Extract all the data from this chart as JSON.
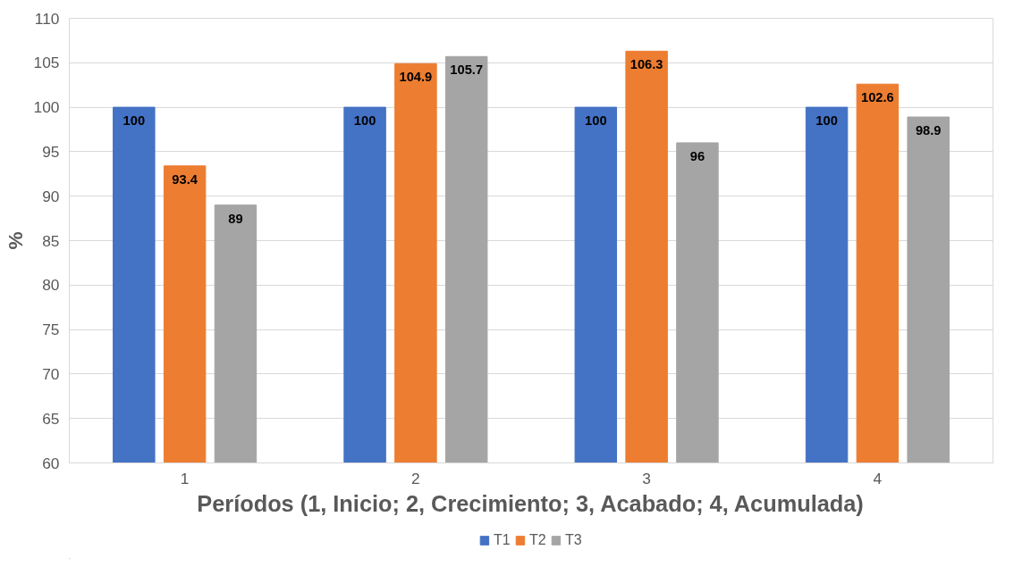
{
  "chart_data": {
    "type": "bar",
    "xlabel": "Períodos (1, Inicio; 2, Crecimiento; 3, Acabado; 4, Acumulada)",
    "ylabel": "%",
    "categories": [
      "1",
      "2",
      "3",
      "4"
    ],
    "series": [
      {
        "name": "T1",
        "color": "#4472c4",
        "values": [
          100,
          100,
          100,
          100
        ]
      },
      {
        "name": "T2",
        "color": "#ed7d31",
        "values": [
          93.4,
          104.9,
          106.3,
          102.6
        ]
      },
      {
        "name": "T3",
        "color": "#a5a5a5",
        "values": [
          89,
          105.7,
          96,
          98.9
        ]
      }
    ],
    "ylim": [
      60,
      110
    ],
    "yticks": [
      60,
      65,
      70,
      75,
      80,
      85,
      90,
      95,
      100,
      105,
      110
    ],
    "grid": "y",
    "legend": "bottom",
    "data_labels": true
  }
}
